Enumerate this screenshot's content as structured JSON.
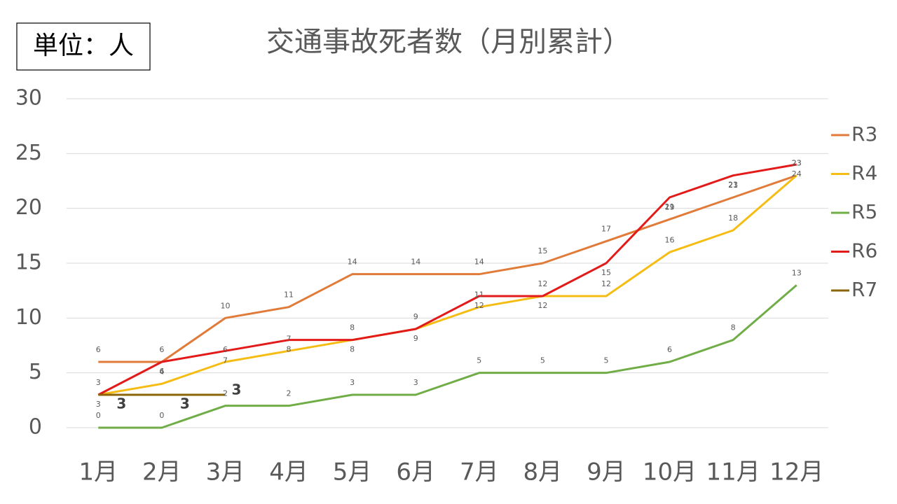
{
  "chart_data": {
    "type": "line",
    "title": "交通事故死者数（月別累計）",
    "unit_label": "単位：人",
    "categories": [
      "1月",
      "2月",
      "3月",
      "4月",
      "5月",
      "6月",
      "7月",
      "8月",
      "9月",
      "10月",
      "11月",
      "12月"
    ],
    "series": [
      {
        "name": "R3",
        "color": "#e07b39",
        "values": [
          6,
          6,
          10,
          11,
          14,
          14,
          14,
          15,
          17,
          19,
          21,
          23
        ]
      },
      {
        "name": "R4",
        "color": "#f5bd14",
        "values": [
          3,
          4,
          6,
          7,
          8,
          9,
          11,
          12,
          12,
          16,
          18,
          23
        ]
      },
      {
        "name": "R5",
        "color": "#70ad47",
        "values": [
          0,
          0,
          2,
          2,
          3,
          3,
          5,
          5,
          5,
          6,
          8,
          13
        ]
      },
      {
        "name": "R6",
        "color": "#e31a1a",
        "values": [
          3,
          6,
          7,
          8,
          8,
          9,
          12,
          12,
          15,
          21,
          23,
          24
        ]
      },
      {
        "name": "R7",
        "color": "#8b6508",
        "values": [
          3,
          3,
          3,
          null,
          null,
          null,
          null,
          null,
          null,
          null,
          null,
          null
        ]
      }
    ],
    "ylim": [
      0,
      30
    ],
    "yticks": [
      0,
      5,
      10,
      15,
      20,
      25,
      30
    ],
    "grid": true,
    "legend": "right"
  }
}
